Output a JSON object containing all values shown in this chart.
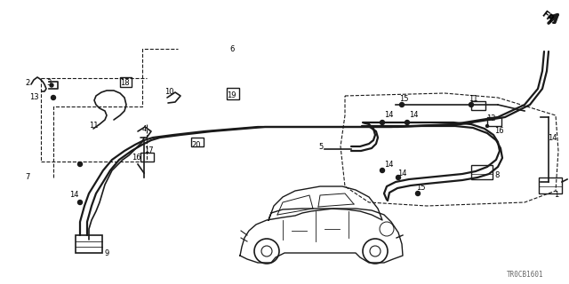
{
  "bg_color": "#ffffff",
  "line_color": "#1a1a1a",
  "text_color": "#000000",
  "diagram_code": "TR0CB1601",
  "lw_main": 1.6,
  "lw_wire": 1.2,
  "dot_r": 2.5,
  "fs": 6.0
}
